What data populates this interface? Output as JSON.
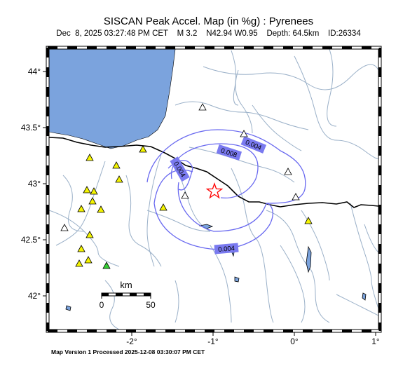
{
  "header": {
    "title": "SISCAN Peak Accel. Map (in %g) : Pyrenees",
    "subtitle": "Dec  8, 2025 03:27:48 PM CET    M 3.2    N42.94 W0.95    Depth: 64.5km    ID:26334"
  },
  "footer": {
    "text": "Map Version 1 Processed 2025-12-08 03:30:07 PM CET"
  },
  "axes": {
    "lon_ticks": [
      "-2°",
      "-1°",
      "0°",
      "1°"
    ],
    "lat_ticks": [
      "44°",
      "43.5°",
      "43°",
      "42.5°",
      "42°"
    ]
  },
  "scale_bar": {
    "unit": "km",
    "start_label": "0",
    "end_label": "50"
  },
  "contours": [
    {
      "label": "0.004"
    },
    {
      "label": "0.008"
    },
    {
      "label": "0.004"
    },
    {
      "label": "0.004"
    }
  ],
  "colors": {
    "sea": "#7ba3dd",
    "rivers": "#9ab0c8",
    "contour": "#6a6af0",
    "contour_label_bg": "#7a7af0",
    "border": "#000000",
    "epicenter": "#ff0000",
    "station_yellow": "#f4f400",
    "station_green": "#33cc33",
    "station_gray": "#ffffff"
  },
  "epicenter": {
    "lat": 42.94,
    "lon": -0.95
  }
}
